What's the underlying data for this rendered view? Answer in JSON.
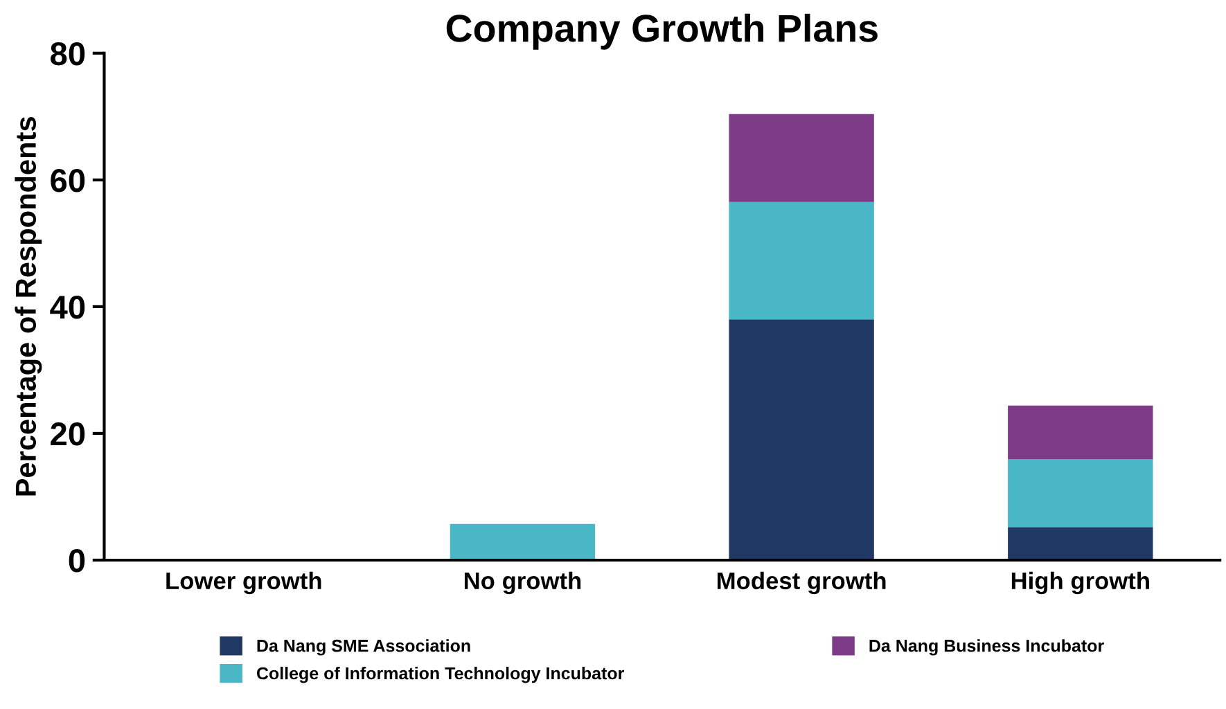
{
  "chart_data": {
    "type": "bar",
    "title": "Company Growth Plans",
    "ylabel": "Percentage of Respondents",
    "categories": [
      "Lower growth",
      "No growth",
      "Modest growth",
      "High growth"
    ],
    "stacked": true,
    "ylim": [
      0,
      80
    ],
    "yticks": [
      0,
      20,
      40,
      60,
      80
    ],
    "grid": false,
    "legend": "bottom",
    "series": [
      {
        "name": "Da Nang SME Association",
        "color": "#203864",
        "values": [
          0,
          0,
          38,
          5.2
        ]
      },
      {
        "name": "College of Information Technology Incubator",
        "color": "#4ab7c6",
        "values": [
          0,
          5.7,
          18.5,
          10.7
        ]
      },
      {
        "name": "Da Nang Business Incubator",
        "color": "#7e3b87",
        "values": [
          0,
          0,
          13.9,
          8.5
        ]
      }
    ]
  }
}
